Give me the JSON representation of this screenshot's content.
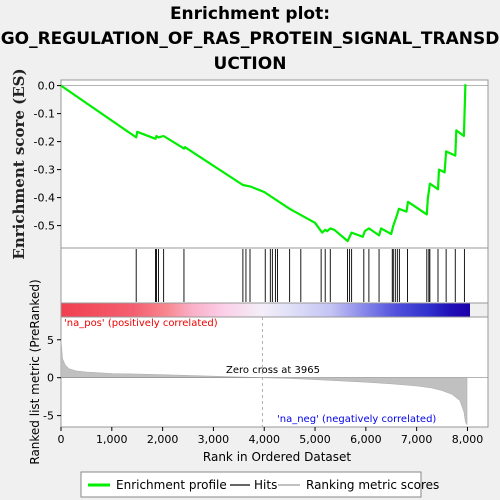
{
  "chart_data": {
    "type": "line",
    "title_lines": [
      "Enrichment plot:",
      "GO_REGULATION_OF_RAS_PROTEIN_SIGNAL_TRANSD",
      "UCTION"
    ],
    "xlabel": "Rank in Ordered Dataset",
    "ylabel_top": "Enrichment score (ES)",
    "ylabel_bottom": "Ranked list metric (PreRanked)",
    "xlim": [
      0,
      8050
    ],
    "x_ticks": [
      "0",
      "1,000",
      "2,000",
      "3,000",
      "4,000",
      "5,000",
      "6,000",
      "7,000",
      "8,000"
    ],
    "x_tick_values": [
      0,
      1000,
      2000,
      3000,
      4000,
      5000,
      6000,
      7000,
      8000
    ],
    "es_ylim": [
      -0.58,
      0.02
    ],
    "es_y_ticks": [
      "0.0",
      "-0.1",
      "-0.2",
      "-0.3",
      "-0.4",
      "-0.5"
    ],
    "es_y_tick_values": [
      0.0,
      -0.1,
      -0.2,
      -0.3,
      -0.4,
      -0.5
    ],
    "metric_ylim": [
      -6.5,
      8
    ],
    "metric_y_ticks": [
      "5",
      "0",
      "-5"
    ],
    "metric_y_tick_values": [
      5,
      0,
      -5
    ],
    "enrichment_profile": {
      "x": [
        0,
        1480,
        1500,
        1860,
        1880,
        1920,
        2020,
        2420,
        2440,
        3580,
        3720,
        4000,
        4500,
        5000,
        5120,
        5140,
        5200,
        5240,
        5300,
        5380,
        5640,
        5720,
        5940,
        5980,
        6060,
        6260,
        6300,
        6500,
        6540,
        6600,
        6650,
        6800,
        6830,
        7200,
        7220,
        7260,
        7420,
        7440,
        7550,
        7580,
        7760,
        7780,
        7930,
        7960
      ],
      "y": [
        0.0,
        -0.185,
        -0.165,
        -0.19,
        -0.18,
        -0.185,
        -0.18,
        -0.225,
        -0.22,
        -0.355,
        -0.36,
        -0.38,
        -0.44,
        -0.49,
        -0.52,
        -0.525,
        -0.515,
        -0.52,
        -0.51,
        -0.515,
        -0.555,
        -0.525,
        -0.54,
        -0.52,
        -0.51,
        -0.535,
        -0.51,
        -0.53,
        -0.5,
        -0.47,
        -0.44,
        -0.45,
        -0.415,
        -0.46,
        -0.405,
        -0.35,
        -0.37,
        -0.3,
        -0.31,
        -0.235,
        -0.25,
        -0.16,
        -0.18,
        0.005
      ]
    },
    "hits": [
      1480,
      1860,
      1880,
      1920,
      2020,
      2420,
      3580,
      3640,
      3720,
      4020,
      4120,
      4160,
      4220,
      4260,
      4500,
      4720,
      5120,
      5200,
      5300,
      5640,
      5680,
      5720,
      5960,
      6060,
      6260,
      6520,
      6540,
      6580,
      6620,
      6660,
      6820,
      7200,
      7240,
      7260,
      7420,
      7580,
      7760,
      7940
    ],
    "ranked_metric": {
      "x": [
        0,
        30,
        80,
        150,
        300,
        500,
        1000,
        2000,
        3000,
        3965,
        4500,
        5000,
        6000,
        6500,
        7000,
        7300,
        7500,
        7700,
        7850,
        7930,
        7960,
        7990
      ],
      "y": [
        5.0,
        2.5,
        1.7,
        1.2,
        0.9,
        0.75,
        0.55,
        0.4,
        0.2,
        0.0,
        -0.1,
        -0.25,
        -0.6,
        -0.8,
        -1.1,
        -1.35,
        -1.7,
        -2.2,
        -3.0,
        -4.5,
        -5.8,
        -6.2
      ]
    },
    "zero_cross_label": "Zero cross at 3965",
    "zero_cross": 3965,
    "pos_label": "'na_pos' (positively correlated)",
    "neg_label": "'na_neg' (negatively correlated)",
    "legend": [
      "Enrichment profile",
      "Hits",
      "Ranking metric scores"
    ],
    "colors": {
      "profile": "#00ee00",
      "hits": "#000000",
      "metric": "#c0c0c0",
      "pos_text": "#ee0000",
      "neg_text": "#0000ee",
      "zero_line": "#b0b0b0"
    }
  }
}
